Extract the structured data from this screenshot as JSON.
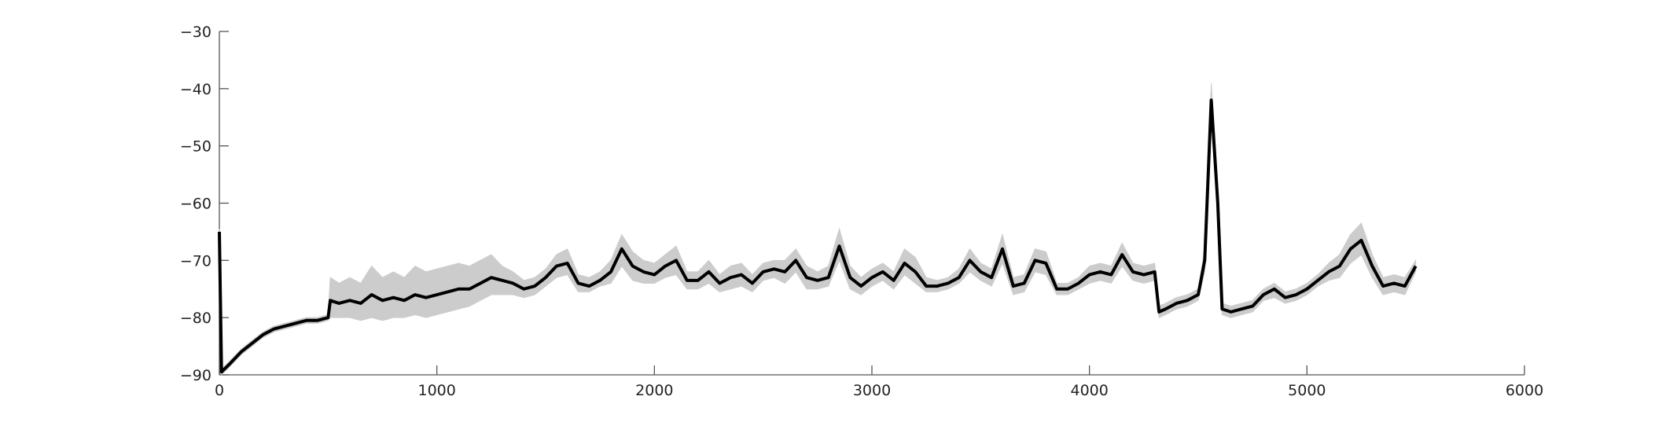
{
  "chart_data": {
    "type": "line",
    "x": [
      0,
      10,
      50,
      100,
      150,
      200,
      250,
      300,
      350,
      400,
      450,
      500,
      510,
      550,
      600,
      650,
      700,
      750,
      800,
      850,
      900,
      950,
      1000,
      1050,
      1100,
      1150,
      1200,
      1250,
      1300,
      1350,
      1400,
      1450,
      1500,
      1550,
      1600,
      1650,
      1700,
      1750,
      1800,
      1850,
      1900,
      1950,
      2000,
      2050,
      2100,
      2150,
      2200,
      2250,
      2300,
      2350,
      2400,
      2450,
      2500,
      2550,
      2600,
      2650,
      2700,
      2750,
      2800,
      2850,
      2900,
      2950,
      3000,
      3050,
      3100,
      3150,
      3200,
      3250,
      3300,
      3350,
      3400,
      3450,
      3500,
      3550,
      3600,
      3650,
      3700,
      3750,
      3800,
      3850,
      3900,
      3950,
      4000,
      4050,
      4100,
      4150,
      4200,
      4250,
      4300,
      4320,
      4350,
      4400,
      4450,
      4500,
      4530,
      4560,
      4590,
      4610,
      4650,
      4700,
      4750,
      4800,
      4850,
      4900,
      4950,
      5000,
      5050,
      5100,
      5150,
      5200,
      5250,
      5300,
      5350,
      5400,
      5450,
      5500
    ],
    "series": [
      {
        "color": "#000000",
        "values": [
          -65,
          -89.5,
          -88,
          -86,
          -84.5,
          -83,
          -82,
          -81.5,
          -81,
          -80.5,
          -80.5,
          -80,
          -77,
          -77.5,
          -77,
          -77.5,
          -76,
          -77,
          -76.5,
          -77,
          -76,
          -76.5,
          -76,
          -75.5,
          -75,
          -75,
          -74,
          -73,
          -73.5,
          -74,
          -75,
          -74.5,
          -73,
          -71,
          -70.5,
          -74,
          -74.5,
          -73.5,
          -72,
          -68,
          -71,
          -72,
          -72.5,
          -71,
          -70,
          -73.5,
          -73.5,
          -72,
          -74,
          -73,
          -72.5,
          -74,
          -72,
          -71.5,
          -72,
          -70,
          -73,
          -73.5,
          -73,
          -67.5,
          -73,
          -74.5,
          -73,
          -72,
          -73.5,
          -70.5,
          -72,
          -74.5,
          -74.5,
          -74,
          -73,
          -70,
          -72,
          -73,
          -68,
          -74.5,
          -74,
          -70,
          -70.5,
          -75,
          -75,
          -74,
          -72.5,
          -72,
          -72.5,
          -69,
          -72,
          -72.5,
          -72,
          -79,
          -78.5,
          -77.5,
          -77,
          -76,
          -70,
          -42,
          -60,
          -78.5,
          -79,
          -78.5,
          -78,
          -76,
          -75,
          -76.5,
          -76,
          -75,
          -73.5,
          -72,
          -71,
          -68,
          -66.5,
          -71,
          -74.5,
          -74,
          -74.5,
          -71
        ]
      }
    ],
    "band": {
      "color": "#cccccc",
      "upper": [
        -64.5,
        -89,
        -87.5,
        -85.5,
        -84,
        -82.5,
        -81.5,
        -81,
        -80.5,
        -80,
        -80,
        -79.5,
        -73,
        -74,
        -73,
        -74,
        -71,
        -73,
        -72,
        -73,
        -71,
        -72,
        -71.5,
        -71,
        -70.5,
        -71,
        -70,
        -69,
        -71,
        -72,
        -73.5,
        -73,
        -71.5,
        -69,
        -68,
        -72.5,
        -73,
        -72,
        -70,
        -65.5,
        -68.5,
        -70,
        -70.5,
        -69,
        -67.5,
        -72,
        -72,
        -70,
        -72.5,
        -71,
        -70.5,
        -72.5,
        -70.5,
        -70,
        -70,
        -68,
        -71,
        -72,
        -71,
        -64.5,
        -71,
        -73,
        -71.5,
        -70.5,
        -72,
        -68,
        -69.5,
        -73,
        -73.5,
        -73,
        -71.5,
        -68,
        -70.5,
        -71.5,
        -65.5,
        -73,
        -72.5,
        -68,
        -68.5,
        -74,
        -74,
        -73,
        -71,
        -70.5,
        -71,
        -67,
        -70.5,
        -71,
        -70.5,
        -78,
        -77.5,
        -76.5,
        -76,
        -75,
        -68,
        -39,
        -57,
        -77.5,
        -78,
        -77.5,
        -77,
        -75,
        -74,
        -75.5,
        -75,
        -74,
        -72.5,
        -70.5,
        -69,
        -65.5,
        -63.5,
        -69,
        -73,
        -72.5,
        -73,
        -70
      ],
      "lower": [
        -65.5,
        -90,
        -88.5,
        -86.5,
        -85,
        -83.5,
        -82.5,
        -82,
        -81.5,
        -81,
        -81,
        -80.5,
        -80,
        -80,
        -80,
        -80.5,
        -80,
        -80.5,
        -80,
        -80,
        -79.5,
        -80,
        -79.5,
        -79,
        -78.5,
        -78,
        -77,
        -76,
        -76,
        -76,
        -76.5,
        -76,
        -74.5,
        -73,
        -72.5,
        -75.5,
        -75.5,
        -74.5,
        -74,
        -71,
        -73.5,
        -74,
        -74,
        -73,
        -72.5,
        -75,
        -75,
        -74,
        -75.5,
        -75,
        -74.5,
        -75.5,
        -73.5,
        -73,
        -74,
        -72,
        -75,
        -75,
        -74.5,
        -70,
        -75,
        -76,
        -74.5,
        -73.5,
        -75,
        -72.5,
        -74,
        -75.5,
        -75.5,
        -75,
        -74,
        -72,
        -73.5,
        -74.5,
        -70.5,
        -76,
        -75.5,
        -72,
        -72.5,
        -76,
        -76,
        -75,
        -74,
        -73.5,
        -74,
        -71,
        -73.5,
        -74,
        -73.5,
        -80,
        -79.5,
        -78.5,
        -78,
        -77,
        -72,
        -44,
        -63,
        -79.5,
        -80,
        -79.5,
        -79,
        -77,
        -76.5,
        -77.5,
        -77,
        -76,
        -74.5,
        -73.5,
        -73,
        -70.5,
        -69,
        -73,
        -76,
        -75.5,
        -76,
        -72
      ]
    },
    "xlim": [
      0,
      6000
    ],
    "xticks": [
      0,
      1000,
      2000,
      3000,
      4000,
      5000,
      6000
    ],
    "ylim": [
      -90,
      -30
    ],
    "yticks": [
      {
        "value": -30,
        "label": "−30"
      },
      {
        "value": -40,
        "label": "−40"
      },
      {
        "value": -50,
        "label": "−50"
      },
      {
        "value": -60,
        "label": "−60"
      },
      {
        "value": -70,
        "label": "−70"
      },
      {
        "value": -80,
        "label": "−80"
      },
      {
        "value": -90,
        "label": "−90"
      }
    ],
    "grid": false
  }
}
